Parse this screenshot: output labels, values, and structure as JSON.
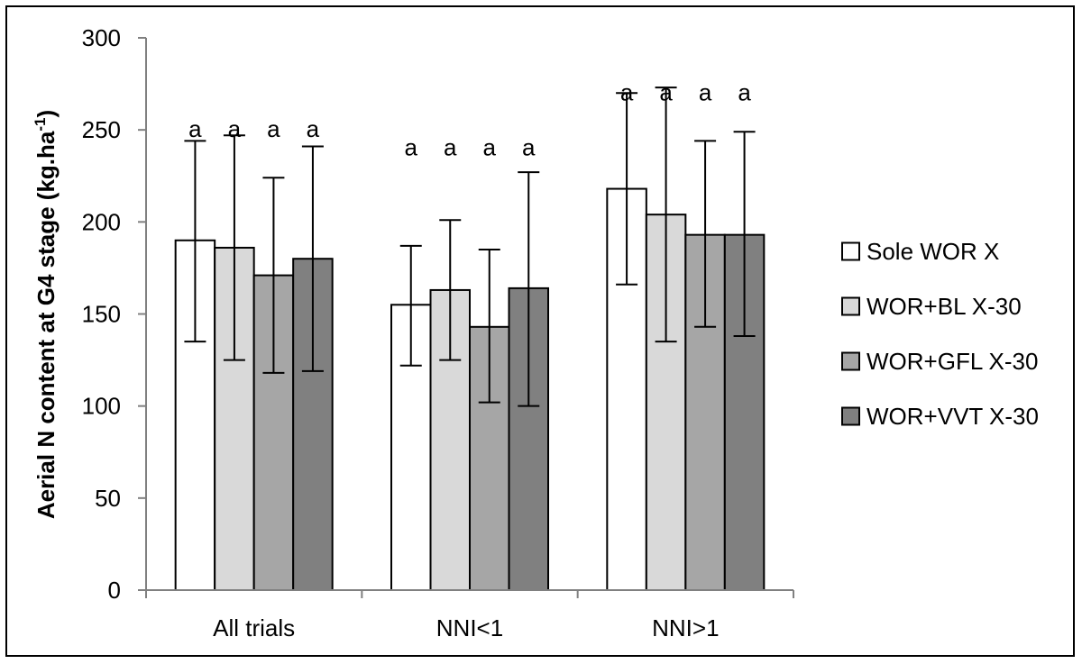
{
  "chart_data": {
    "type": "bar",
    "ylabel": "Aerial N content at G4 stage (kg.ha",
    "ylabel_sup": "-1",
    "ylabel_close": ")",
    "ylim": [
      0,
      300
    ],
    "yticks": [
      "0",
      "50",
      "100",
      "150",
      "200",
      "250",
      "300"
    ],
    "ytick_values": [
      0,
      50,
      100,
      150,
      200,
      250,
      300
    ],
    "categories": [
      "All trials",
      "NNI<1",
      "NNI>1"
    ],
    "legend_position": "right",
    "series": [
      {
        "name": "Sole WOR X",
        "color": "#ffffff",
        "values": [
          190,
          155,
          218
        ],
        "err_low": [
          135,
          122,
          166
        ],
        "err_high": [
          244,
          187,
          270
        ],
        "sig": [
          "a",
          "a",
          "a"
        ]
      },
      {
        "name": "WOR+BL X-30",
        "color": "#d9d9d9",
        "values": [
          186,
          163,
          204
        ],
        "err_low": [
          125,
          125,
          135
        ],
        "err_high": [
          247,
          201,
          273
        ],
        "sig": [
          "a",
          "a",
          "a"
        ]
      },
      {
        "name": "WOR+GFL X-30",
        "color": "#a6a6a6",
        "values": [
          171,
          143,
          193
        ],
        "err_low": [
          118,
          102,
          143
        ],
        "err_high": [
          224,
          185,
          244
        ],
        "sig": [
          "a",
          "a",
          "a"
        ]
      },
      {
        "name": "WOR+VVT X-30",
        "color": "#808080",
        "values": [
          180,
          164,
          193
        ],
        "err_low": [
          119,
          100,
          138
        ],
        "err_high": [
          241,
          227,
          249
        ],
        "sig": [
          "a",
          "a",
          "a"
        ]
      }
    ],
    "sig_label_y": [
      250,
      240,
      270
    ]
  }
}
